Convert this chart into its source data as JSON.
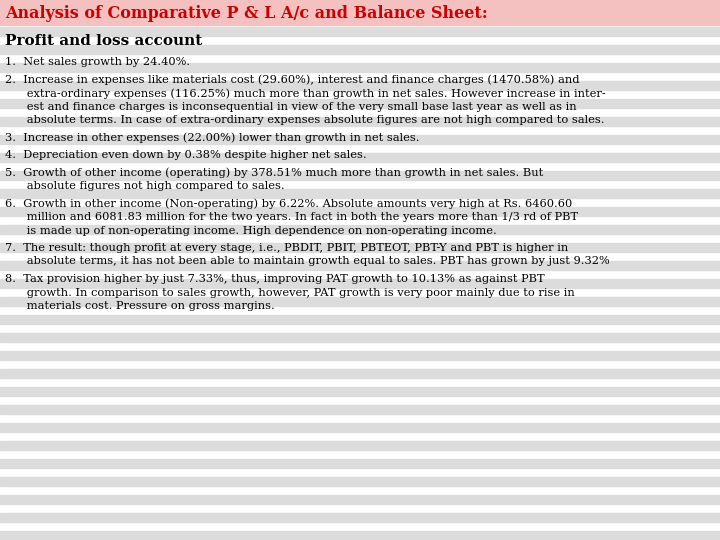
{
  "title": "Analysis of Comparative P & L A/c and Balance Sheet:",
  "section_header": "Profit and loss account",
  "title_color": "#cc0000",
  "section_color": "#000000",
  "text_color": "#000000",
  "bg_color": "#ffffff",
  "stripe_color": "#dcdcdc",
  "title_fontsize": 11.5,
  "section_fontsize": 11,
  "body_fontsize": 8.2,
  "items": [
    "1.  Net sales growth by 24.40%.",
    "2.  Increase in expenses like materials cost (29.60%), interest and finance charges (1470.58%) and\n      extra-ordinary expenses (116.25%) much more than growth in net sales. However increase in inter-\n      est and finance charges is inconsequential in view of the very small base last year as well as in\n      absolute terms. In case of extra-ordinary expenses absolute figures are not high compared to sales.",
    "3.  Increase in other expenses (22.00%) lower than growth in net sales.",
    "4.  Depreciation even down by 0.38% despite higher net sales.",
    "5.  Growth of other income (operating) by 378.51% much more than growth in net sales. But\n      absolute figures not high compared to sales.",
    "6.  Growth in other income (Non-operating) by 6.22%. Absolute amounts very high at Rs. 6460.60\n      million and 6081.83 million for the two years. In fact in both the years more than 1/3 rd of PBT\n      is made up of non-operating income. High dependence on non-operating income.",
    "7.  The result: though profit at every stage, i.e., PBDIT, PBIT, PBTEOT, PBT-Y and PBT is higher in\n      absolute terms, it has not been able to maintain growth equal to sales. PBT has grown by just 9.32%",
    "8.  Tax provision higher by just 7.33%, thus, improving PAT growth to 10.13% as against PBT\n      growth. In comparison to sales growth, however, PAT growth is very poor mainly due to rise in\n      materials cost. Pressure on gross margins."
  ]
}
